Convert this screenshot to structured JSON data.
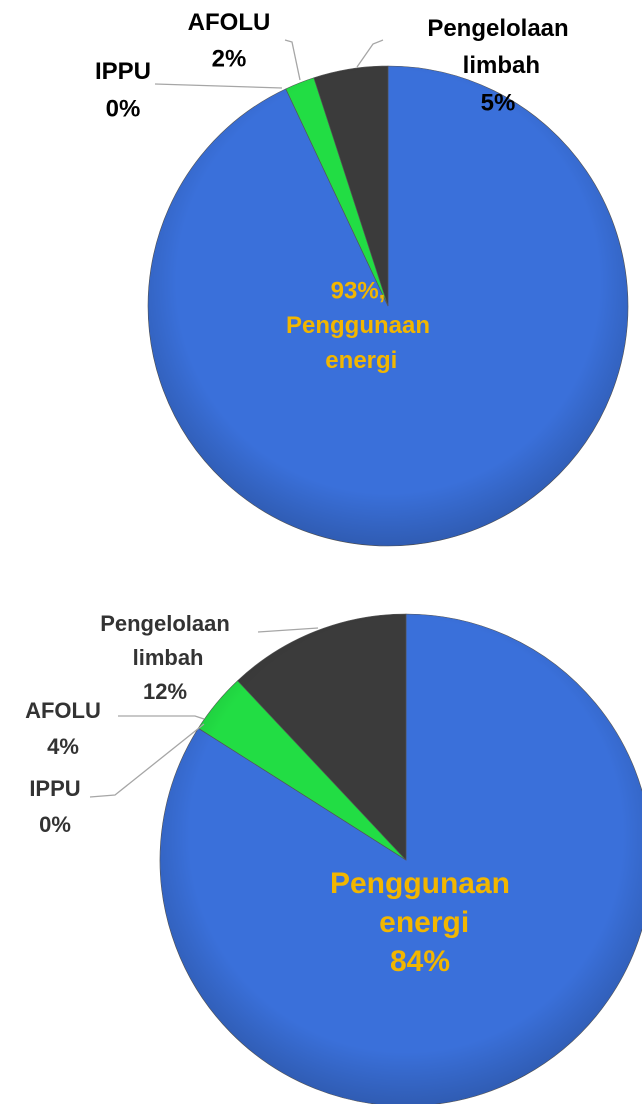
{
  "chart_data": [
    {
      "type": "pie",
      "categories": [
        "Penggunaan energi",
        "IPPU",
        "AFOLU",
        "Pengelolaan limbah"
      ],
      "values": [
        93,
        0,
        2,
        5
      ],
      "value_labels": [
        "93%,",
        "0%",
        "2%",
        "5%"
      ],
      "colors": [
        "#3a70da",
        "#9aa0a6",
        "#22dd44",
        "#3b3b3b"
      ]
    },
    {
      "type": "pie",
      "categories": [
        "Penggunaan energi",
        "IPPU",
        "AFOLU",
        "Pengelolaan limbah"
      ],
      "values": [
        84,
        0,
        4,
        12
      ],
      "value_labels": [
        "84%",
        "0%",
        "4%",
        "12%"
      ],
      "colors": [
        "#3a70da",
        "#9aa0a6",
        "#22dd44",
        "#3b3b3b"
      ]
    }
  ]
}
